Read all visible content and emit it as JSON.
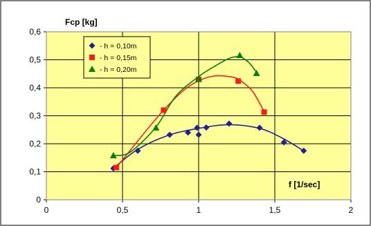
{
  "chart_data": {
    "type": "scatter",
    "ylabel": "Fcp [kg]",
    "xlabel": "f [1/sec]",
    "xlim": [
      0,
      2
    ],
    "ylim": [
      0,
      0.6
    ],
    "x_ticks": [
      0,
      0.5,
      1,
      1.5,
      2
    ],
    "x_tick_labels": [
      "0",
      "0,5",
      "1",
      "1,5",
      "2"
    ],
    "y_ticks": [
      0,
      0.1,
      0.2,
      0.3,
      0.4,
      0.5,
      0.6
    ],
    "y_tick_labels": [
      "0",
      "0,1",
      "0,2",
      "0,3",
      "0,4",
      "0,5",
      "0,6"
    ],
    "grid": true,
    "legend_position": "top-left",
    "plot_background": "#ffff99",
    "series": [
      {
        "name": "- h = 0,10m",
        "marker": "diamond",
        "color": "#1f1f99",
        "points": [
          [
            0.44,
            0.112
          ],
          [
            0.6,
            0.175
          ],
          [
            0.81,
            0.232
          ],
          [
            0.93,
            0.24
          ],
          [
            0.99,
            0.257
          ],
          [
            1.0,
            0.232
          ],
          [
            1.05,
            0.258
          ],
          [
            1.2,
            0.272
          ],
          [
            1.4,
            0.257
          ],
          [
            1.56,
            0.205
          ],
          [
            1.69,
            0.175
          ]
        ],
        "trend": [
          [
            0.44,
            0.112
          ],
          [
            0.6,
            0.18
          ],
          [
            0.8,
            0.23
          ],
          [
            1.0,
            0.255
          ],
          [
            1.2,
            0.268
          ],
          [
            1.4,
            0.255
          ],
          [
            1.55,
            0.22
          ],
          [
            1.68,
            0.178
          ]
        ]
      },
      {
        "name": "- h = 0,15m",
        "marker": "square",
        "color": "#ff1a1a",
        "points": [
          [
            0.46,
            0.115
          ],
          [
            0.77,
            0.32
          ],
          [
            1.0,
            0.43
          ],
          [
            1.26,
            0.424
          ],
          [
            1.43,
            0.313
          ]
        ],
        "trend": [
          [
            0.46,
            0.115
          ],
          [
            0.6,
            0.21
          ],
          [
            0.77,
            0.32
          ],
          [
            0.9,
            0.39
          ],
          [
            1.0,
            0.425
          ],
          [
            1.1,
            0.442
          ],
          [
            1.2,
            0.44
          ],
          [
            1.26,
            0.43
          ],
          [
            1.35,
            0.39
          ],
          [
            1.43,
            0.315
          ]
        ]
      },
      {
        "name": "- h = 0,20m",
        "marker": "triangle",
        "color": "#008000",
        "points": [
          [
            0.44,
            0.158
          ],
          [
            0.72,
            0.257
          ],
          [
            1.0,
            0.432
          ],
          [
            1.27,
            0.516
          ],
          [
            1.38,
            0.452
          ]
        ],
        "trend": [
          [
            0.44,
            0.158
          ],
          [
            0.55,
            0.17
          ],
          [
            0.72,
            0.26
          ],
          [
            0.85,
            0.37
          ],
          [
            1.0,
            0.44
          ],
          [
            1.1,
            0.475
          ],
          [
            1.2,
            0.505
          ],
          [
            1.27,
            0.51
          ],
          [
            1.33,
            0.49
          ],
          [
            1.38,
            0.455
          ]
        ]
      }
    ]
  }
}
